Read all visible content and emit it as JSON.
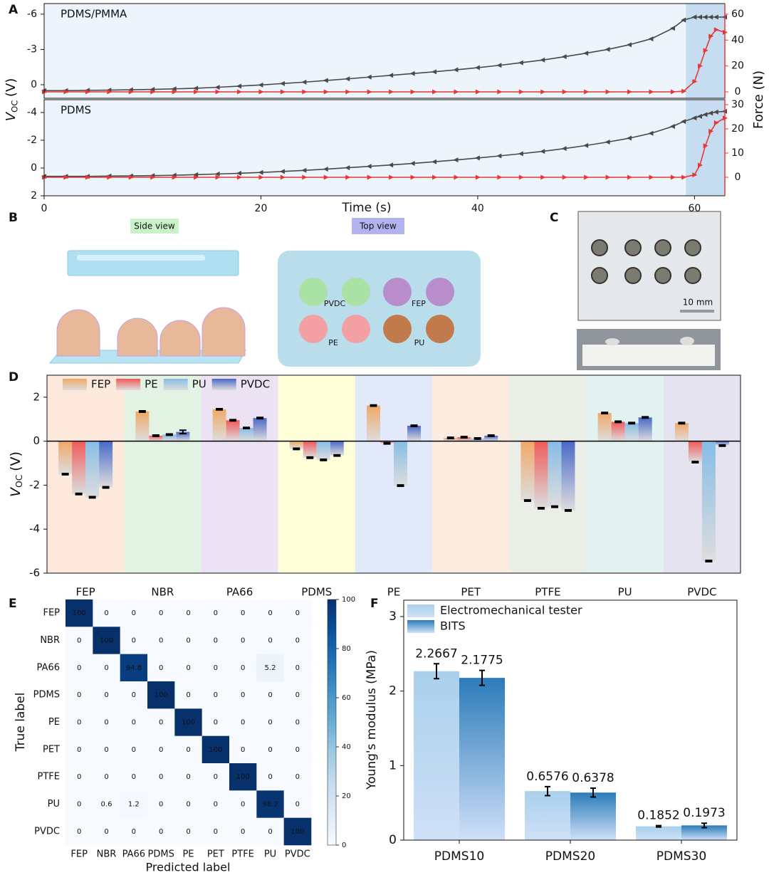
{
  "panel_labels": [
    "A",
    "B",
    "C",
    "D",
    "E",
    "F"
  ],
  "diagram_b": {
    "view_labels": [
      "Side view",
      "Top view"
    ],
    "materials": [
      "PVDC",
      "FEP",
      "PE",
      "PU"
    ]
  },
  "photo_c": {
    "scale_label": "10 mm"
  },
  "chart_data": [
    {
      "type": "line",
      "xlabel": "Time (s)",
      "ylabel": {
        "symbol": "V",
        "subscript": "OC",
        "unit": "(V)"
      },
      "y2label": "Force (N)",
      "xlim": [
        0,
        62.8
      ],
      "xticks": [
        0,
        20,
        40,
        60
      ],
      "shaded_x": [
        59.2,
        62.8
      ],
      "x": [
        0,
        2,
        4,
        6,
        8,
        10,
        12,
        14,
        16,
        18,
        20,
        22,
        24,
        26,
        28,
        30,
        32,
        34,
        36,
        38,
        40,
        42,
        44,
        46,
        48,
        50,
        52,
        54,
        56,
        58,
        59,
        60,
        60.5,
        61,
        61.5,
        62,
        62.8
      ],
      "subplots": [
        {
          "annotation": "PDMS/PMMA",
          "ylim": [
            1.15,
            -6.9
          ],
          "yticks": [
            0,
            -3,
            -6
          ],
          "y2lim": [
            -4.95,
            68.2
          ],
          "y2ticks": [
            0,
            20,
            40,
            60
          ],
          "series": [
            {
              "color": "#4a4a4a",
              "values": [
                0.5,
                0.5,
                0.48,
                0.46,
                0.43,
                0.4,
                0.35,
                0.3,
                0.22,
                0.12,
                0.02,
                -0.1,
                -0.22,
                -0.36,
                -0.5,
                -0.65,
                -0.8,
                -0.95,
                -1.1,
                -1.27,
                -1.45,
                -1.65,
                -1.87,
                -2.1,
                -2.38,
                -2.68,
                -3.0,
                -3.4,
                -3.9,
                -4.8,
                -5.5,
                -5.75,
                -5.75,
                -5.75,
                -5.75,
                -5.75,
                -5.75
              ]
            },
            {
              "color": "#e53935",
              "axis": "y2",
              "values": [
                0,
                0,
                0,
                0,
                0,
                0,
                0,
                0,
                0,
                0,
                0,
                0,
                0,
                0,
                0,
                0,
                0,
                0,
                0,
                0,
                0,
                0,
                0,
                0,
                0,
                0,
                0,
                0,
                0,
                0,
                0.5,
                8,
                20,
                32,
                43,
                48,
                46
              ]
            }
          ]
        },
        {
          "annotation": "PDMS",
          "ylim": [
            2.0,
            -4.92
          ],
          "yticks": [
            2,
            0,
            -2,
            -4
          ],
          "y2lim": [
            -7.65,
            32.06
          ],
          "y2ticks": [
            0,
            10,
            20,
            30
          ],
          "series": [
            {
              "color": "#4a4a4a",
              "values": [
                0.6,
                0.6,
                0.6,
                0.58,
                0.57,
                0.55,
                0.52,
                0.48,
                0.43,
                0.38,
                0.32,
                0.25,
                0.17,
                0.08,
                -0.02,
                -0.12,
                -0.22,
                -0.33,
                -0.45,
                -0.58,
                -0.72,
                -0.87,
                -1.03,
                -1.2,
                -1.4,
                -1.62,
                -1.87,
                -2.15,
                -2.5,
                -3.0,
                -3.35,
                -3.6,
                -3.72,
                -3.85,
                -3.95,
                -4.03,
                -4.08
              ]
            },
            {
              "color": "#e53935",
              "axis": "y2",
              "values": [
                0,
                0,
                0,
                0,
                0,
                0,
                0,
                0,
                0,
                0,
                0,
                0,
                0,
                0,
                0,
                0,
                0,
                0,
                0,
                0,
                0,
                0,
                0,
                0,
                0,
                0,
                0,
                0,
                0,
                0,
                0,
                1,
                5,
                13,
                19,
                22.5,
                24.5
              ]
            }
          ]
        }
      ]
    },
    {
      "type": "bar",
      "ylabel": {
        "symbol": "V",
        "subscript": "OC",
        "unit": "(V)"
      },
      "legend": "upper left",
      "categories": [
        "FEP",
        "NBR",
        "PA66",
        "PDMS",
        "PE",
        "PET",
        "PTFE",
        "PU",
        "PVDC"
      ],
      "group_backgrounds": [
        "#fde9dc",
        "#e3f3e3",
        "#ebe3f3",
        "#fdfdd8",
        "#e1e9fb",
        "#fcebdf",
        "#ebeee6",
        "#e1f2f1",
        "#e6e3f0"
      ],
      "ylim": [
        -6,
        3
      ],
      "yticks": [
        -6,
        -4,
        -2,
        0,
        2
      ],
      "series": [
        {
          "name": "FEP",
          "color": "#f0a868",
          "values": [
            -1.5,
            1.35,
            1.45,
            -0.35,
            1.62,
            0.15,
            -2.7,
            1.28,
            0.82
          ],
          "errors": [
            0.03,
            0.03,
            0.03,
            0.03,
            0.03,
            0.03,
            0.03,
            0.03,
            0.03
          ]
        },
        {
          "name": "PE",
          "color": "#f05a5a",
          "values": [
            -2.4,
            0.25,
            0.95,
            -0.75,
            -0.1,
            0.18,
            -3.05,
            0.88,
            -0.95
          ],
          "errors": [
            0.03,
            0.03,
            0.03,
            0.03,
            0.03,
            0.03,
            0.03,
            0.03,
            0.03
          ]
        },
        {
          "name": "PU",
          "color": "#86bde6",
          "values": [
            -2.55,
            0.3,
            0.6,
            -0.85,
            -2.02,
            0.12,
            -2.98,
            0.82,
            -5.45
          ],
          "errors": [
            0.03,
            0.03,
            0.03,
            0.03,
            0.03,
            0.03,
            0.03,
            0.03,
            0.03
          ]
        },
        {
          "name": "PVDC",
          "color": "#4a68c8",
          "values": [
            -2.1,
            0.42,
            1.05,
            -0.65,
            0.7,
            0.25,
            -3.15,
            1.08,
            -0.2
          ],
          "errors": [
            0.03,
            0.08,
            0.03,
            0.03,
            0.03,
            0.03,
            0.03,
            0.03,
            0.03
          ]
        }
      ]
    },
    {
      "type": "heatmap",
      "xlabel": "Predicted label",
      "ylabel": "True label",
      "categories": [
        "FEP",
        "NBR",
        "PA66",
        "PDMS",
        "PE",
        "PET",
        "PTFE",
        "PU",
        "PVDC"
      ],
      "zlim": [
        0,
        100
      ],
      "zticks": [
        0,
        20,
        40,
        60,
        80,
        100
      ],
      "values": [
        [
          100,
          0,
          0,
          0,
          0,
          0,
          0,
          0,
          0
        ],
        [
          0,
          100,
          0,
          0,
          0,
          0,
          0,
          0,
          0
        ],
        [
          0,
          0,
          94.8,
          0,
          0,
          0,
          0,
          5.2,
          0
        ],
        [
          0,
          0,
          0,
          100,
          0,
          0,
          0,
          0,
          0
        ],
        [
          0,
          0,
          0,
          0,
          100,
          0,
          0,
          0,
          0
        ],
        [
          0,
          0,
          0,
          0,
          0,
          100,
          0,
          0,
          0
        ],
        [
          0,
          0,
          0,
          0,
          0,
          0,
          100,
          0,
          0
        ],
        [
          0,
          0.6,
          1.2,
          0,
          0,
          0,
          0,
          98.2,
          0
        ],
        [
          0,
          0,
          0,
          0,
          0,
          0,
          0,
          0,
          100
        ]
      ]
    },
    {
      "type": "bar",
      "ylabel": "Young's modulus (MPa)",
      "legend": "upper left",
      "categories": [
        "PDMS10",
        "PDMS20",
        "PDMS30"
      ],
      "ylim": [
        0,
        3.22
      ],
      "yticks": [
        0,
        1,
        2,
        3
      ],
      "series": [
        {
          "name": "Electromechanical tester",
          "color": "#a9d0ec",
          "values": [
            2.2667,
            0.6576,
            0.1852
          ],
          "errors": [
            0.1,
            0.06,
            0.01
          ]
        },
        {
          "name": "BITS",
          "color": "#2b7bba",
          "values": [
            2.1775,
            0.6378,
            0.1973
          ],
          "errors": [
            0.1,
            0.06,
            0.03
          ]
        }
      ]
    }
  ]
}
